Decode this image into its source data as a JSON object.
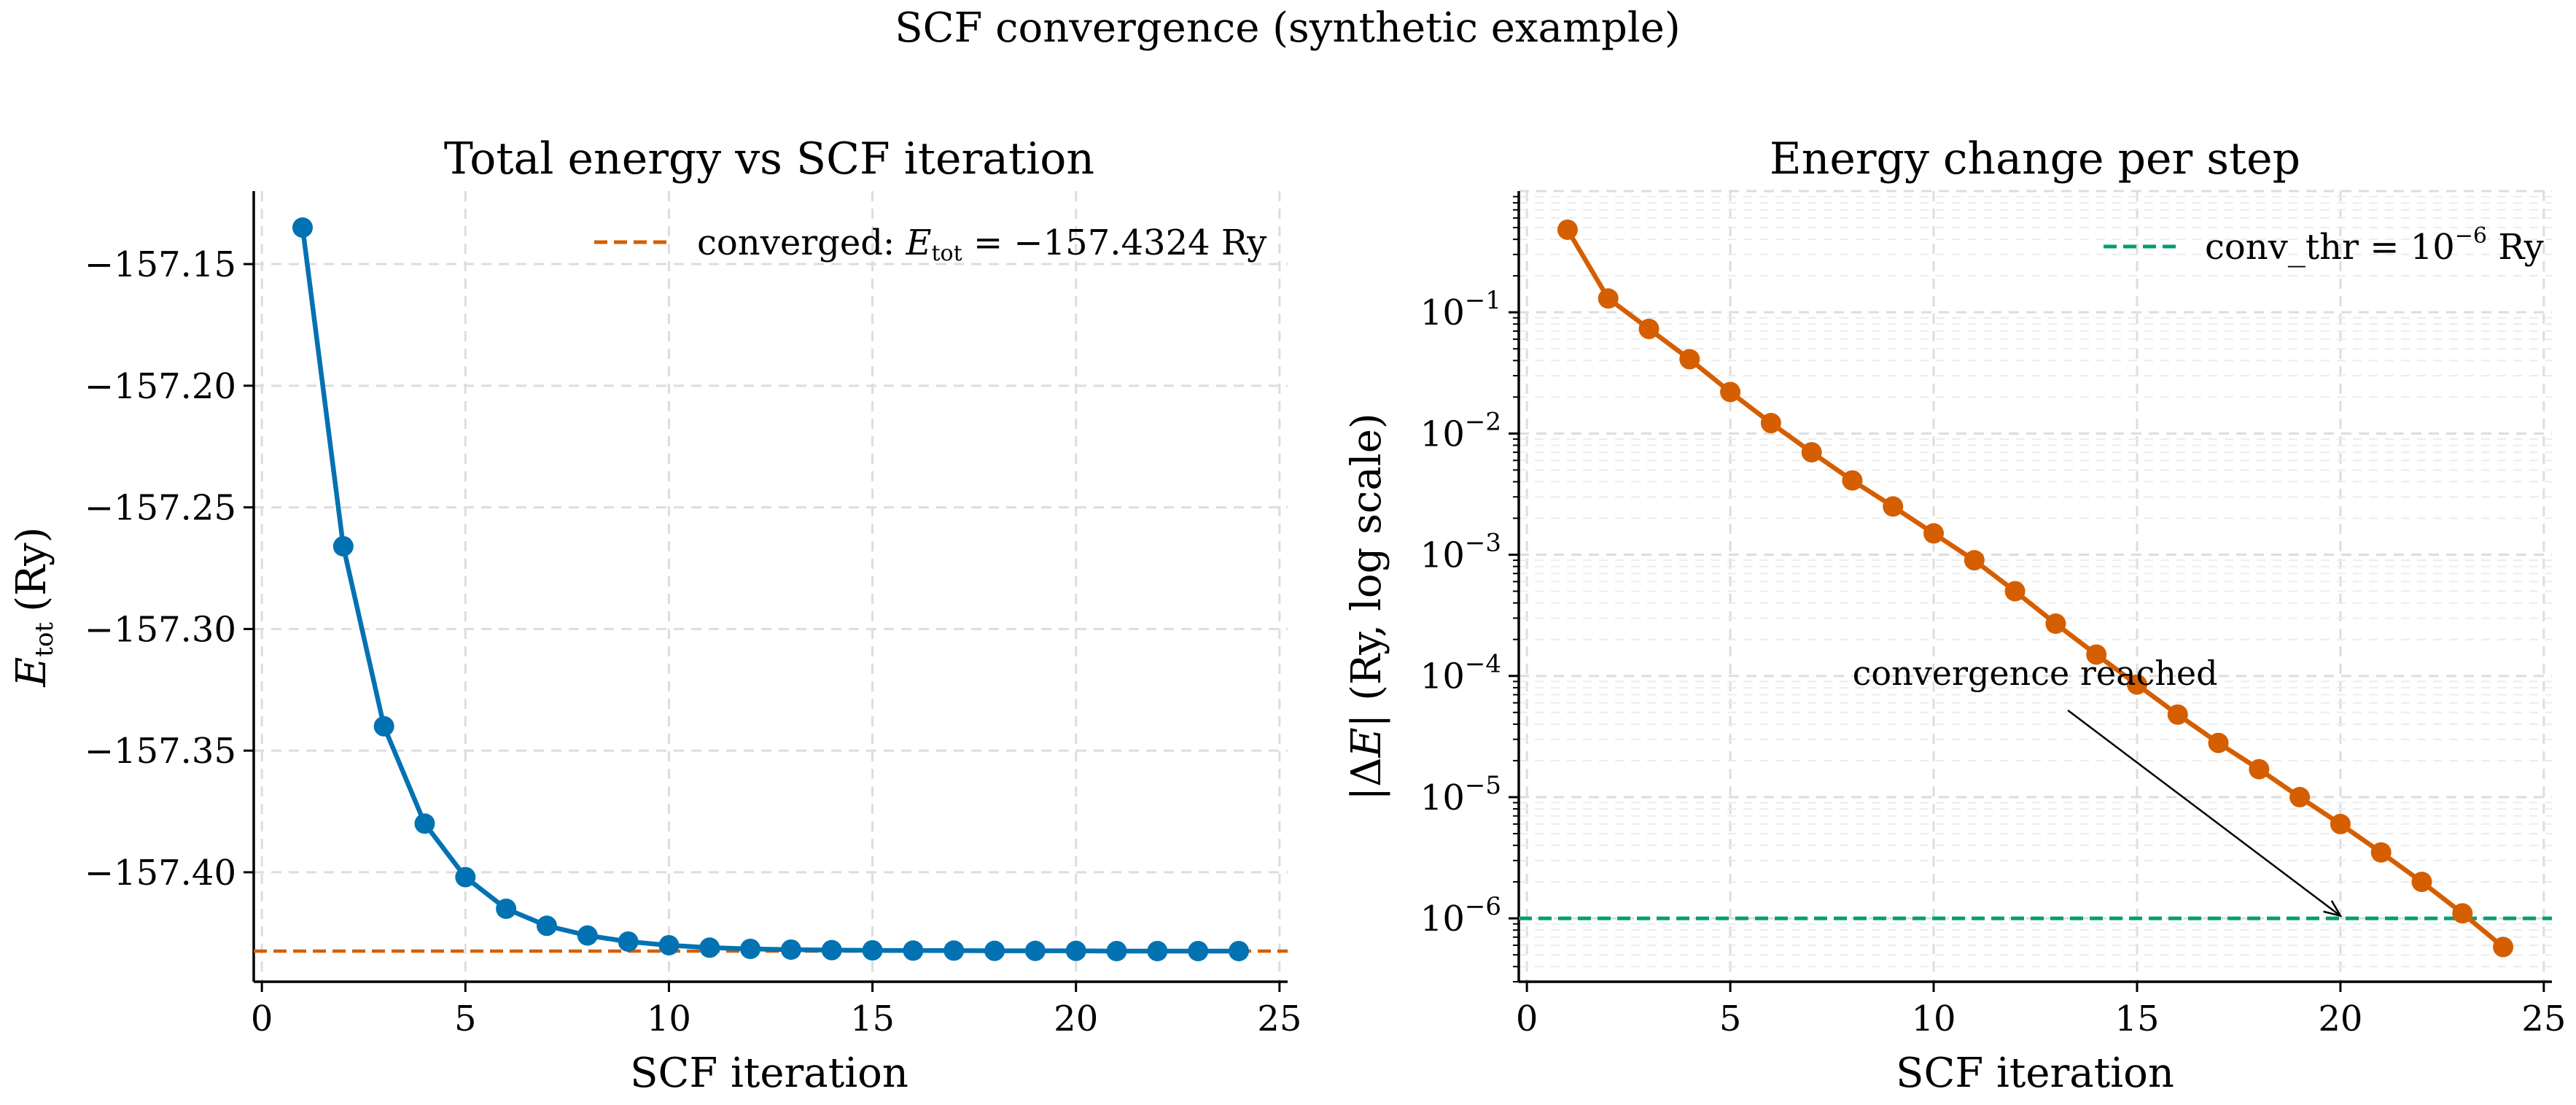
{
  "figure": {
    "suptitle": "SCF convergence (synthetic example)"
  },
  "colors": {
    "energy_line": "#0372b2",
    "converged_line": "#d55e00",
    "delta_line": "#d55e00",
    "threshold_line": "#009e73",
    "grid": "#dddddd",
    "axis": "#000000",
    "arrow": "#000000"
  },
  "chart_data": [
    {
      "type": "line",
      "title": "Total energy vs SCF iteration",
      "xlabel": "SCF iteration",
      "ylabel_symbol": "E",
      "ylabel_subscript": "tot",
      "ylabel_unit": "(Ry)",
      "xlim": [
        -0.2,
        25.2
      ],
      "ylim": [
        -157.445,
        -157.12
      ],
      "xticks": [
        0,
        5,
        10,
        15,
        20,
        25
      ],
      "yticks": [
        -157.15,
        -157.2,
        -157.25,
        -157.3,
        -157.35,
        -157.4
      ],
      "ytick_labels": [
        "−157.15",
        "−157.20",
        "−157.25",
        "−157.30",
        "−157.35",
        "−157.40"
      ],
      "grid": true,
      "legend_position": "top-right",
      "series": [
        {
          "x": [
            1,
            2,
            3,
            4,
            5,
            6,
            7,
            8,
            9,
            10,
            11,
            12,
            13,
            14,
            15,
            16,
            17,
            18,
            19,
            20,
            21,
            22,
            23,
            24
          ],
          "values": [
            -157.135,
            -157.266,
            -157.34,
            -157.38,
            -157.402,
            -157.415,
            -157.422,
            -157.426,
            -157.4285,
            -157.43,
            -157.431,
            -157.4315,
            -157.4318,
            -157.432,
            -157.4321,
            -157.4322,
            -157.4322,
            -157.4323,
            -157.4323,
            -157.4323,
            -157.4324,
            -157.4324,
            -157.4324,
            -157.4324
          ]
        }
      ],
      "reference_line": {
        "y": -157.4324,
        "legend_prefix": "converged: ",
        "legend_symbol": "E",
        "legend_subscript": "tot",
        "legend_value": " = −157.4324 Ry"
      }
    },
    {
      "type": "line",
      "title": "Energy change per step",
      "xlabel": "SCF iteration",
      "ylabel_prefix": "|Δ",
      "ylabel_symbol": "E",
      "ylabel_suffix": "| (Ry, log scale)",
      "yscale": "log",
      "xlim": [
        -0.2,
        25.2
      ],
      "ylim": [
        3e-07,
        1.0
      ],
      "xticks": [
        0,
        5,
        10,
        15,
        20,
        25
      ],
      "ytick_exponents": [
        -1,
        -2,
        -3,
        -4,
        -5,
        -6
      ],
      "ytick_base": "10",
      "grid": true,
      "legend_position": "top-right",
      "series": [
        {
          "x": [
            1,
            2,
            3,
            4,
            5,
            6,
            7,
            8,
            9,
            10,
            11,
            12,
            13,
            14,
            15,
            16,
            17,
            18,
            19,
            20,
            21,
            22,
            23,
            24
          ],
          "values": [
            0.48,
            0.13,
            0.073,
            0.041,
            0.022,
            0.0122,
            0.007,
            0.0041,
            0.0025,
            0.0015,
            0.0009,
            0.0005,
            0.00027,
            0.00015,
            8.5e-05,
            4.8e-05,
            2.8e-05,
            1.7e-05,
            1e-05,
            6e-06,
            3.5e-06,
            2e-06,
            1.1e-06,
            5.8e-07
          ]
        }
      ],
      "threshold_line": {
        "y": 1e-06,
        "legend_text": "conv_thr = 10",
        "legend_exponent": "−6",
        "legend_unit": " Ry"
      },
      "annotation": {
        "text": "convergence reached",
        "arrow_from": [
          13.3,
          5.2e-05
        ],
        "arrow_to": [
          20,
          1.05e-06
        ]
      }
    }
  ]
}
